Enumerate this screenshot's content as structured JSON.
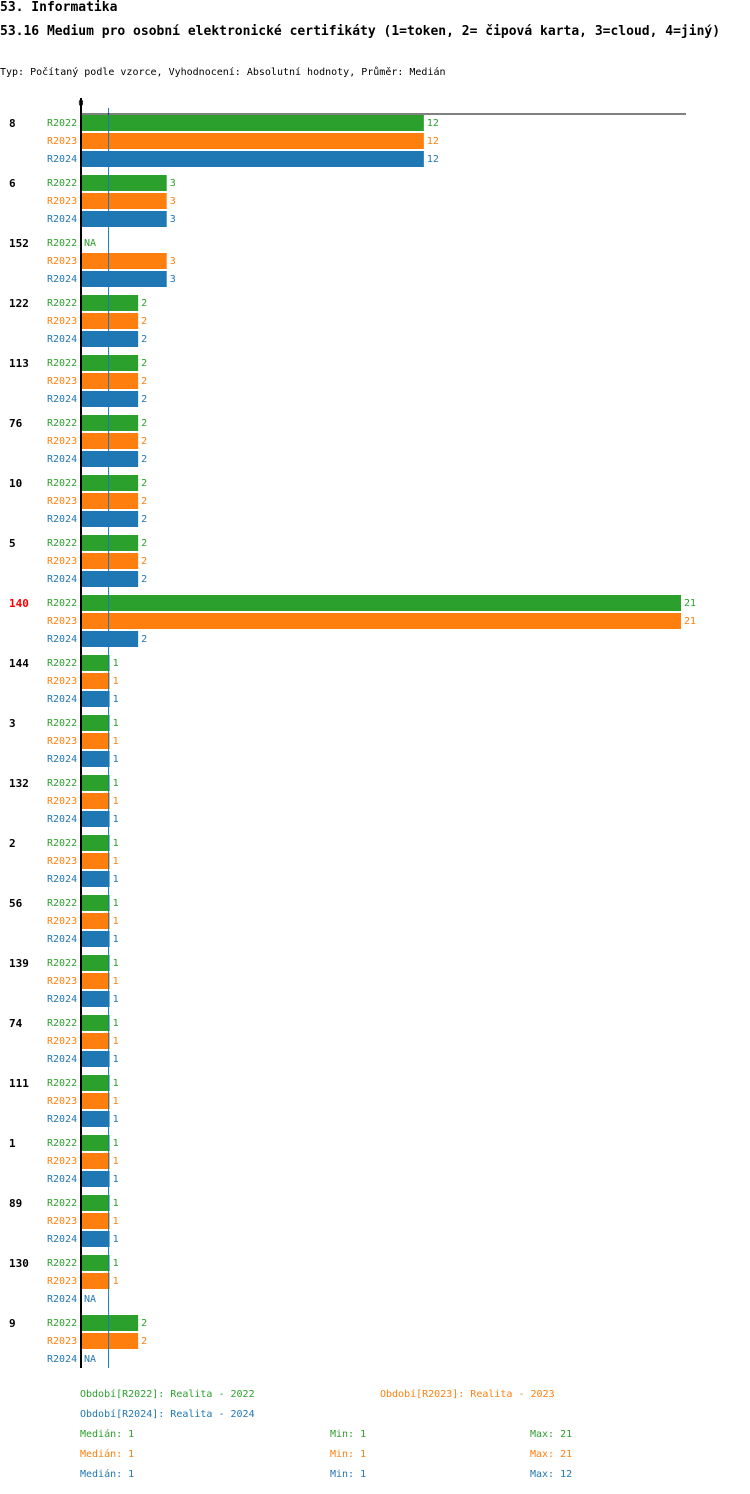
{
  "header": {
    "section": "53. Informatika",
    "question": "53.16 Medium pro osobní elektronické certifikáty (1=token, 2= čipová karta, 3=cloud, 4=jiný)",
    "subtitle": "Typ: Počítaný podle vzorce, Vyhodnocení: Absolutní hodnoty, Průměr: Medián"
  },
  "colors": {
    "R2022": "#2ca02c",
    "R2023": "#ff7f0e",
    "R2024": "#1f77b4",
    "highlight": "#ff0000",
    "axis": "#000000",
    "median_line": "#1f77b4"
  },
  "chart_data": {
    "type": "bar",
    "orientation": "horizontal",
    "axis_zero_label": "0",
    "xlim": [
      0,
      21
    ],
    "median_value": 1,
    "highlighted_category": "140",
    "series_names": [
      "R2022",
      "R2023",
      "R2024"
    ],
    "categories": [
      "8",
      "6",
      "152",
      "122",
      "113",
      "76",
      "10",
      "5",
      "140",
      "144",
      "3",
      "132",
      "2",
      "56",
      "139",
      "74",
      "111",
      "1",
      "89",
      "130",
      "9"
    ],
    "series": [
      {
        "name": "R2022",
        "values": [
          12,
          3,
          null,
          2,
          2,
          2,
          2,
          2,
          21,
          1,
          1,
          1,
          1,
          1,
          1,
          1,
          1,
          1,
          1,
          1,
          2
        ]
      },
      {
        "name": "R2023",
        "values": [
          12,
          3,
          3,
          2,
          2,
          2,
          2,
          2,
          21,
          1,
          1,
          1,
          1,
          1,
          1,
          1,
          1,
          1,
          1,
          1,
          2
        ]
      },
      {
        "name": "R2024",
        "values": [
          12,
          3,
          3,
          2,
          2,
          2,
          2,
          2,
          2,
          1,
          1,
          1,
          1,
          1,
          1,
          1,
          1,
          1,
          1,
          null,
          null
        ]
      }
    ],
    "missing_label": "NA"
  },
  "legend": {
    "period_2022": "Období[R2022]: Realita - 2022",
    "period_2023": "Období[R2023]: Realita - 2023",
    "period_2024": "Období[R2024]: Realita - 2024",
    "stats": [
      {
        "median": "Medián: 1",
        "min": "Min: 1",
        "max": "Max: 21"
      },
      {
        "median": "Medián: 1",
        "min": "Min: 1",
        "max": "Max: 21"
      },
      {
        "median": "Medián: 1",
        "min": "Min: 1",
        "max": "Max: 12"
      }
    ]
  }
}
